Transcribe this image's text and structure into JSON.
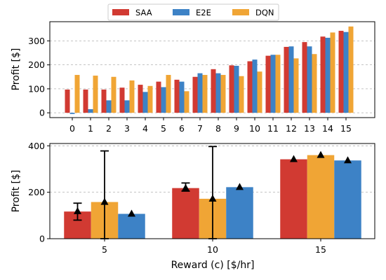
{
  "colors": {
    "SAA": "#d13a32",
    "E2E": "#3d82c6",
    "DQN": "#f0a535"
  },
  "legend": {
    "position": "top-center",
    "items": [
      "SAA",
      "E2E",
      "DQN"
    ]
  },
  "chart_data": [
    {
      "type": "bar",
      "xlabel": "",
      "ylabel": "Profit [$]",
      "ylim": [
        -20,
        380
      ],
      "yticks": [
        0,
        100,
        200,
        300
      ],
      "grid": true,
      "categories": [
        "0",
        "1",
        "2",
        "3",
        "4",
        "5",
        "6",
        "7",
        "8",
        "9",
        "10",
        "11",
        "12",
        "13",
        "14",
        "15"
      ],
      "series": [
        {
          "name": "SAA",
          "values": [
            97,
            97,
            97,
            105,
            117,
            130,
            138,
            150,
            182,
            198,
            215,
            238,
            275,
            295,
            318,
            342
          ]
        },
        {
          "name": "E2E",
          "values": [
            -5,
            15,
            52,
            52,
            87,
            107,
            130,
            165,
            165,
            196,
            222,
            242,
            277,
            277,
            313,
            337
          ]
        },
        {
          "name": "DQN",
          "values": [
            158,
            155,
            150,
            135,
            112,
            158,
            90,
            158,
            158,
            153,
            172,
            242,
            227,
            245,
            335,
            360
          ]
        }
      ]
    },
    {
      "type": "bar",
      "xlabel": "Reward (c) [$/hr]",
      "ylabel": "Profit [$]",
      "ylim": [
        0,
        410
      ],
      "yticks": [
        0,
        200,
        400
      ],
      "grid": true,
      "categories": [
        "5",
        "10",
        "15"
      ],
      "series": [
        {
          "name": "SAA",
          "values": [
            117,
            218,
            342
          ],
          "means": [
            118,
            218,
            342
          ],
          "err_low": [
            80,
            205,
            342
          ],
          "err_high": [
            153,
            240,
            342
          ]
        },
        {
          "name": "DQN",
          "values": [
            158,
            172,
            360
          ],
          "means": [
            158,
            172,
            360
          ],
          "err_low": [
            0,
            0,
            360
          ],
          "err_high": [
            378,
            397,
            360
          ]
        },
        {
          "name": "E2E",
          "values": [
            107,
            222,
            337
          ],
          "means": [
            107,
            222,
            337
          ],
          "err_low": [
            107,
            222,
            337
          ],
          "err_high": [
            107,
            222,
            337
          ]
        }
      ]
    }
  ]
}
